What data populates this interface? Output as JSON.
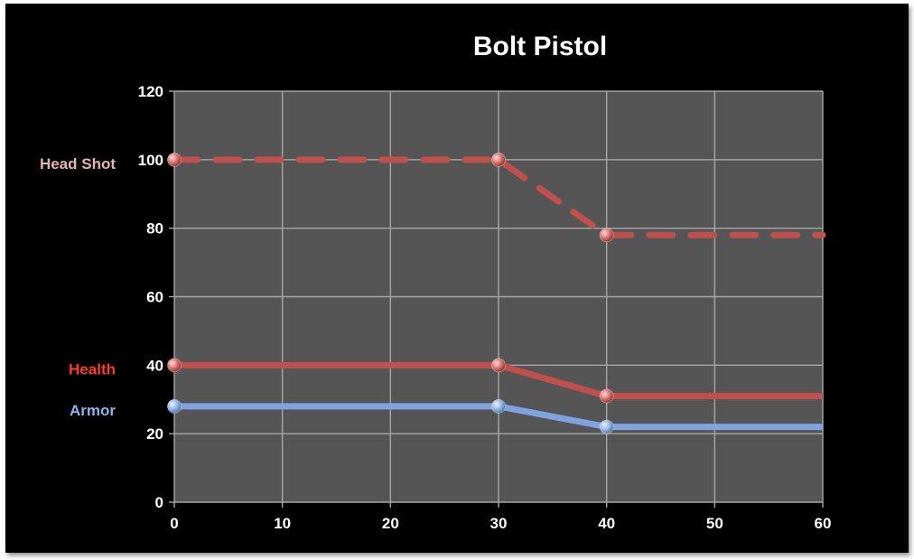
{
  "chart_data": {
    "type": "line",
    "title": "Bolt Pistol",
    "xlabel": "",
    "ylabel": "",
    "xlim": [
      0,
      60
    ],
    "ylim": [
      0,
      120
    ],
    "xticks": [
      0,
      10,
      20,
      30,
      40,
      50,
      60
    ],
    "yticks": [
      0,
      20,
      40,
      60,
      80,
      100,
      120
    ],
    "grid": true,
    "legend": "left",
    "series": [
      {
        "name": "Head Shot",
        "color": "#c0504d",
        "label_color": "#e6b3b3",
        "dashed": true,
        "points": [
          [
            0,
            100
          ],
          [
            30,
            100
          ],
          [
            40,
            78
          ],
          [
            60,
            78
          ]
        ]
      },
      {
        "name": "Health",
        "color": "#c0504d",
        "label_color": "#ff3b1f",
        "dashed": false,
        "points": [
          [
            0,
            40
          ],
          [
            30,
            40
          ],
          [
            40,
            31
          ],
          [
            60,
            31
          ]
        ]
      },
      {
        "name": "Armor",
        "color": "#7ea3de",
        "label_color": "#8db4ee",
        "dashed": false,
        "points": [
          [
            0,
            28
          ],
          [
            30,
            28
          ],
          [
            40,
            22
          ],
          [
            60,
            22
          ]
        ]
      }
    ],
    "markers_at_x": [
      0,
      30,
      40
    ]
  }
}
